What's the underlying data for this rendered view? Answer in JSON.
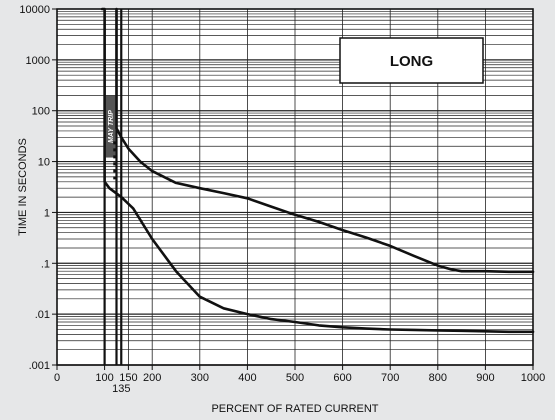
{
  "chart_data": {
    "type": "line",
    "xlabel": "PERCENT OF RATED CURRENT",
    "ylabel": "TIME IN SECONDS",
    "xlim": [
      0,
      1000
    ],
    "ylim": [
      0.001,
      10000
    ],
    "y_scale": "log",
    "grid": true,
    "x_ticks": [
      {
        "value": 0,
        "label": "0"
      },
      {
        "value": 100,
        "label": "100"
      },
      {
        "value": 150,
        "label": "150"
      },
      {
        "value": 200,
        "label": "200"
      },
      {
        "value": 300,
        "label": "300"
      },
      {
        "value": 400,
        "label": "400"
      },
      {
        "value": 500,
        "label": "500"
      },
      {
        "value": 600,
        "label": "600"
      },
      {
        "value": 700,
        "label": "700"
      },
      {
        "value": 800,
        "label": "800"
      },
      {
        "value": 900,
        "label": "900"
      },
      {
        "value": 1000,
        "label": "1000"
      }
    ],
    "x_extra_label": {
      "value": 135,
      "label": "135"
    },
    "y_ticks": [
      {
        "value": 10000,
        "label": "10000"
      },
      {
        "value": 1000,
        "label": "1000"
      },
      {
        "value": 100,
        "label": "100"
      },
      {
        "value": 10,
        "label": "10"
      },
      {
        "value": 1,
        "label": "1"
      },
      {
        "value": 0.1,
        "label": ".1"
      },
      {
        "value": 0.01,
        "label": ".01"
      },
      {
        "value": 0.001,
        "label": ".001"
      }
    ],
    "legend": {
      "label": "LONG",
      "position": "top-right"
    },
    "may_trip_label": "MAY TRIP",
    "vertical_lines": [
      100,
      125,
      135
    ],
    "series": [
      {
        "x": [
          95,
          100,
          100,
          110,
          135,
          160,
          200,
          250,
          300,
          350,
          400,
          450,
          500,
          550,
          600,
          650,
          700,
          750,
          800,
          850,
          900,
          950,
          1000
        ],
        "y": [
          10000,
          10000,
          4,
          3,
          2,
          1.2,
          0.3,
          0.07,
          0.022,
          0.013,
          0.01,
          0.008,
          0.007,
          0.006,
          0.0055,
          0.0052,
          0.005,
          0.0049,
          0.0048,
          0.0047,
          0.0046,
          0.0045,
          0.0045
        ]
      },
      {
        "x": [
          125,
          125,
          135,
          150,
          175,
          200,
          250,
          300,
          350,
          400,
          450,
          500,
          550,
          600,
          650,
          700,
          750,
          800,
          830,
          850,
          900,
          950,
          1000
        ],
        "y": [
          10000,
          45,
          30,
          18,
          10,
          6.5,
          3.8,
          3,
          2.4,
          1.9,
          1.3,
          0.9,
          0.65,
          0.45,
          0.32,
          0.22,
          0.14,
          0.09,
          0.075,
          0.07,
          0.07,
          0.068,
          0.068
        ]
      }
    ]
  }
}
